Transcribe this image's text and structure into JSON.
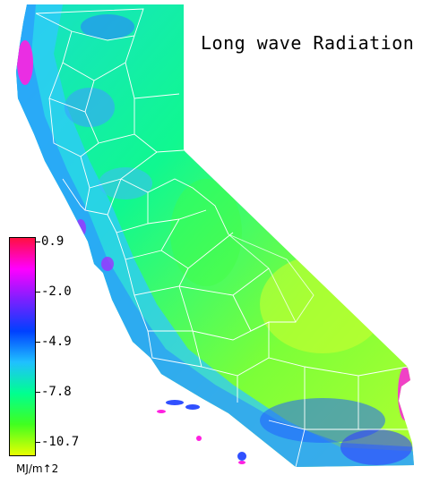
{
  "map": {
    "title": "Long wave Radiation",
    "legend": {
      "units": "MJ/m↑2",
      "ticks": [
        "0.9",
        "-2.0",
        "-4.9",
        "-7.8",
        "-10.7"
      ],
      "colors": [
        "#ff1040",
        "#ff00ff",
        "#7a20ff",
        "#0040ff",
        "#20c0ff",
        "#00ff90",
        "#40ff20",
        "#e8ff00"
      ]
    },
    "colors": {
      "coastal_cyan": "#30c8ff",
      "interior_green": "#10ff70",
      "desert_yellowgreen": "#a8ff30",
      "hotspot_magenta": "#ff20e0",
      "county_lines": "#ffffff"
    }
  }
}
